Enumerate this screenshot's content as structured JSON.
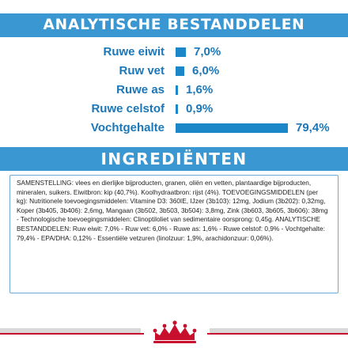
{
  "analysis": {
    "title": "ANALYTISCHE BESTANDDELEN"
  },
  "chart_data": {
    "type": "bar",
    "categories": [
      "Ruwe eiwit",
      "Ruw vet",
      "Ruwe as",
      "Ruwe celstof",
      "Vochtgehalte"
    ],
    "values": [
      7.0,
      6.0,
      1.6,
      0.9,
      79.4
    ],
    "value_labels": [
      "7,0%",
      "6,0%",
      "1,6%",
      "0,9%",
      "79,4%"
    ],
    "title": "ANALYTISCHE BESTANDDELEN",
    "xlabel": "",
    "ylabel": "",
    "xlim": [
      0,
      79.4
    ],
    "unit": "%",
    "bar_color": "#1b87c9",
    "label_color": "#1b77b8"
  },
  "ingredients": {
    "title": "INGREDIËNTEN",
    "text": "SAMENSTELLING: vlees en dierlijke bijproducten, granen, oliën en vetten, plantaardige bijproducten, mineralen, suikers. Eiwitbron: kip (40,7%). Koolhydraatbron: rijst (4%). TOEVOEGINGSMIDDELEN (per kg): Nutritionele toevoegingsmiddelen: Vitamine D3: 360IE, IJzer (3b103): 12mg, Jodium (3b202): 0,32mg, Koper (3b405, 3b406): 2,6mg, Mangaan (3b502, 3b503, 3b504): 3,8mg, Zink (3b603, 3b605, 3b606): 38mg - Technologische toevoegingsmiddelen: Clinoptiloliet van sedimentaire oorsprong: 0,45g. ANALYTISCHE BESTANDDELEN: Ruw eiwit: 7,0% - Ruw vet: 6,0% - Ruwe as: 1,6% - Ruwe celstof: 0,9% - Vochtgehalte: 79,4% - EPA/DHA: 0,12% - Essentiële vetzuren (linolzuur: 1,9%, arachidonzuur: 0,06%)."
  },
  "colors": {
    "banner": "#3b97d1",
    "brand_red": "#c8102e"
  },
  "footer": {
    "logo_icon": "royal-canin-crown-logo"
  }
}
